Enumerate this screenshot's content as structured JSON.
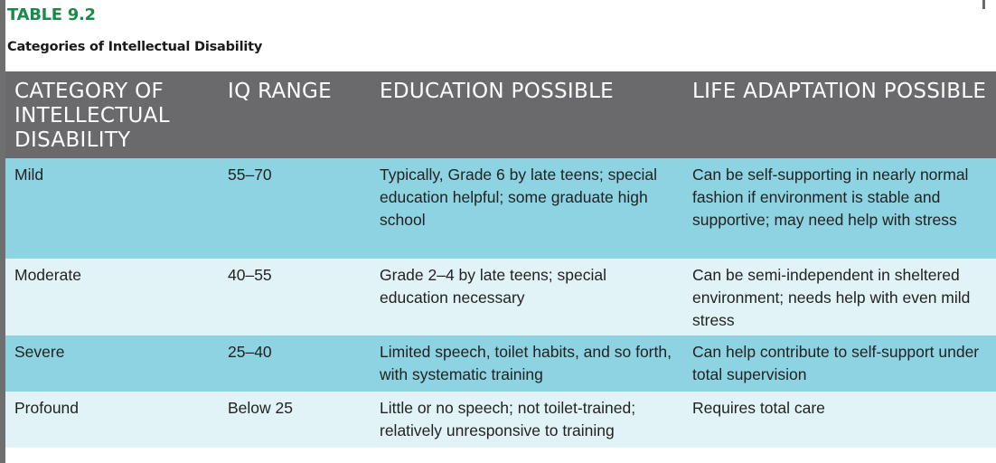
{
  "table_label": "TABLE 9.2",
  "table_title": "Categories of Intellectual Disability",
  "headers": {
    "category": "CATEGORY OF INTELLECTUAL DISABILITY",
    "iq_range": "IQ RANGE",
    "education": "EDUCATION POSSIBLE",
    "life": "LIFE ADAPTATION POSSIBLE"
  },
  "rows": [
    {
      "category": "Mild",
      "iq": "55–70",
      "education": "Typically, Grade 6 by late teens; special education helpful; some graduate high school",
      "life": "Can be self-supporting in nearly normal fashion if environment is stable and supportive; may need help with stress"
    },
    {
      "category": "Moderate",
      "iq": "40–55",
      "education": "Grade 2–4 by late teens; special education necessary",
      "life": "Can be semi-independent in sheltered environment; needs help with even mild stress"
    },
    {
      "category": "Severe",
      "iq": "25–40",
      "education": "Limited speech, toilet habits, and so forth, with systematic training",
      "life": "Can help contribute to self-support under total supervision"
    },
    {
      "category": "Profound",
      "iq": "Below 25",
      "education": "Little or no speech; not toilet-trained; relatively unresponsive to training",
      "life": "Requires total care"
    }
  ],
  "colors": {
    "label_green": "#1a8a4a",
    "header_gray": "#6a6a6d",
    "row_dark": "#8dd3e1",
    "row_light": "#e2f3f8"
  }
}
